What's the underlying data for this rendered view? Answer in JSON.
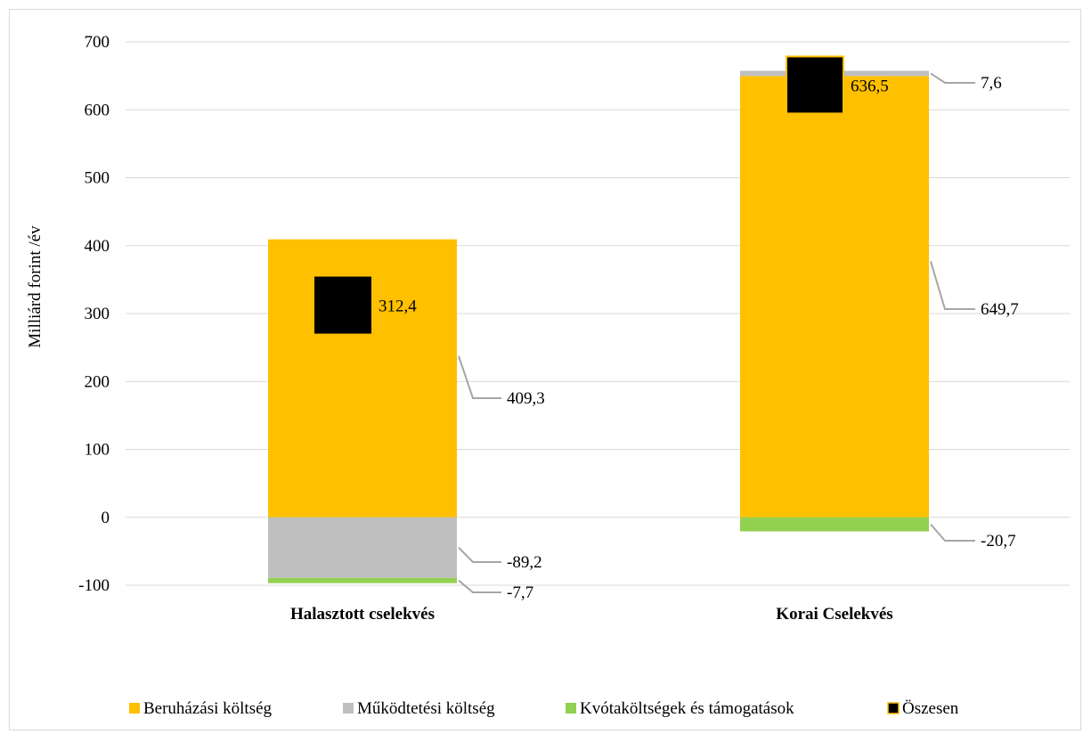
{
  "chart_data": {
    "type": "bar",
    "stacked": true,
    "title": "",
    "xlabel": "",
    "ylabel": "Milliárd  forint /év",
    "ylim": [
      -100,
      700
    ],
    "yticks": [
      -100,
      0,
      100,
      200,
      300,
      400,
      500,
      600,
      700
    ],
    "ytick_labels": [
      "-100",
      "0",
      "100",
      "200",
      "300",
      "400",
      "500",
      "600",
      "700"
    ],
    "grid": true,
    "legend_position": "bottom",
    "categories": [
      "Halasztott cselekvés",
      "Korai Cselekvés"
    ],
    "series": [
      {
        "name": "Beruházási költség",
        "color": "#FFC000",
        "values": [
          409.3,
          649.7
        ],
        "labels": [
          "409,3",
          "649,7"
        ]
      },
      {
        "name": "Működtetési költség",
        "color": "#BFBFBF",
        "values": [
          -89.2,
          7.6
        ],
        "labels": [
          "-89,2",
          "7,6"
        ]
      },
      {
        "name": "Kvótaköltségek és támogatások",
        "color": "#92D050",
        "values": [
          -7.7,
          -20.7
        ],
        "labels": [
          "-7,7",
          "-20,7"
        ]
      }
    ],
    "totals": {
      "name": "Öszesen",
      "color": "#000000",
      "values": [
        312.4,
        636.5
      ],
      "labels": [
        "312,4",
        "636,5"
      ]
    }
  }
}
